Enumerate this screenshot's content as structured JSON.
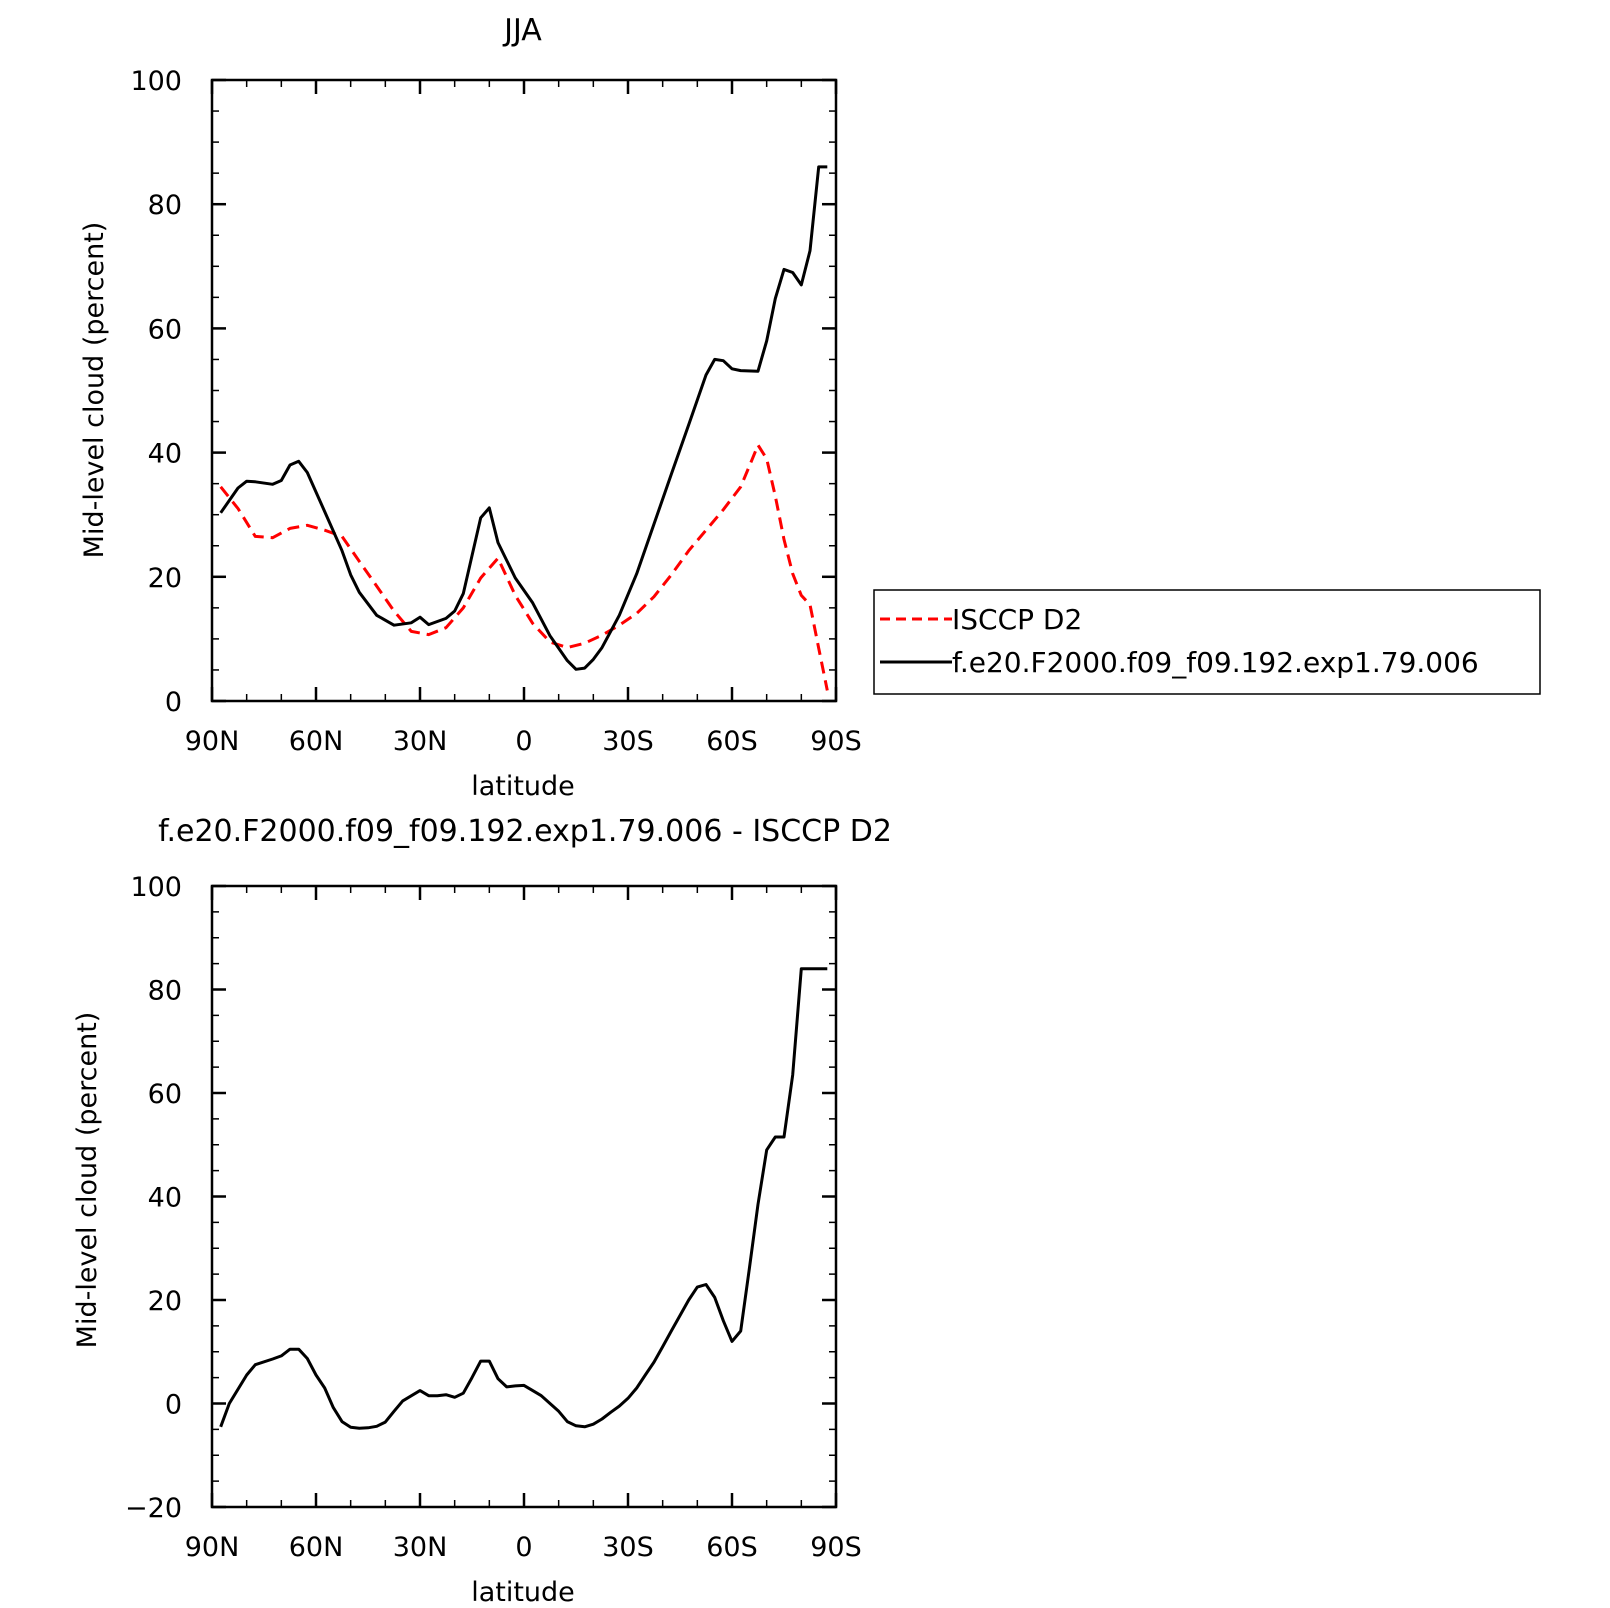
{
  "chart_data": [
    {
      "type": "line",
      "title": "JJA",
      "xlabel": "latitude",
      "ylabel": "Mid-level cloud (percent)",
      "xlim": [
        90,
        -90
      ],
      "ylim": [
        0,
        100
      ],
      "x_ticks": [
        90,
        60,
        30,
        0,
        -30,
        -60,
        -90
      ],
      "x_tick_labels": [
        "90N",
        "60N",
        "30N",
        "0",
        "30S",
        "60S",
        "90S"
      ],
      "y_ticks": [
        0,
        20,
        40,
        60,
        80,
        100
      ],
      "y_tick_labels": [
        "0",
        "20",
        "40",
        "60",
        "80",
        "100"
      ],
      "legend": {
        "placement": "outside-right"
      },
      "series": [
        {
          "name": "ISCCP D2",
          "color": "#ff0000",
          "dashed": true,
          "x": [
            87.5,
            82.5,
            77.5,
            72.5,
            67.5,
            62.5,
            57.5,
            52.5,
            47.5,
            42.5,
            37.5,
            32.5,
            27.5,
            22.5,
            17.5,
            12.5,
            7.5,
            2.5,
            -2.5,
            -7.5,
            -12.5,
            -17.5,
            -22.5,
            -27.5,
            -32.5,
            -37.5,
            -42.5,
            -47.5,
            -52.5,
            -57.5,
            -62.5,
            -65.5,
            -67.5,
            -70,
            -72.5,
            -75,
            -77.5,
            -80,
            -82.5,
            -85,
            -87.5
          ],
          "values": [
            34.5,
            31,
            26.5,
            26.3,
            27.8,
            28.3,
            27.5,
            26.5,
            22.5,
            18.5,
            14.5,
            11.2,
            10.7,
            11.8,
            15,
            19.8,
            23,
            17,
            12.5,
            9.5,
            8.6,
            9.3,
            10.6,
            12.2,
            14.1,
            16.8,
            20.3,
            24.2,
            27.5,
            30.8,
            34.5,
            38.5,
            41.2,
            39,
            33,
            26,
            20.5,
            17,
            15.5,
            8.5,
            1.7
          ]
        },
        {
          "name": "f.e20.F2000.f09_f09.192.exp1.79.006",
          "color": "#000000",
          "dashed": false,
          "x": [
            87.5,
            82.5,
            80,
            77.5,
            72.5,
            70,
            67.5,
            65,
            62.5,
            57.5,
            52.5,
            50,
            47.5,
            42.5,
            37.5,
            32.5,
            30,
            27.5,
            22.5,
            20,
            17.5,
            12.5,
            10,
            7.5,
            2.5,
            -2.5,
            -7.5,
            -12.5,
            -15,
            -17.5,
            -20,
            -22.5,
            -27.5,
            -32.5,
            -37.5,
            -42.5,
            -47.5,
            -52.5,
            -55,
            -57.5,
            -60,
            -62.5,
            -67.5,
            -70,
            -72.5,
            -75,
            -77.5,
            -80,
            -82.5,
            -85,
            -87.5
          ],
          "values": [
            30.3,
            34.3,
            35.4,
            35.3,
            34.9,
            35.5,
            38,
            38.6,
            36.8,
            30.5,
            24.2,
            20.3,
            17.5,
            13.8,
            12.2,
            12.6,
            13.5,
            12.3,
            13.3,
            14.5,
            17.3,
            29.5,
            31.1,
            25.5,
            19.8,
            15.8,
            10.5,
            6.5,
            5.1,
            5.3,
            6.7,
            8.6,
            13.8,
            20.5,
            28.5,
            36.5,
            44.5,
            52.5,
            55,
            54.8,
            53.5,
            53.2,
            53.1,
            58,
            64.8,
            69.5,
            69,
            67,
            72.5,
            86,
            86
          ]
        }
      ]
    },
    {
      "type": "line",
      "title": "f.e20.F2000.f09_f09.192.exp1.79.006 - ISCCP D2",
      "xlabel": "latitude",
      "ylabel": "Mid-level cloud (percent)",
      "xlim": [
        90,
        -90
      ],
      "ylim": [
        -20,
        100
      ],
      "x_ticks": [
        90,
        60,
        30,
        0,
        -30,
        -60,
        -90
      ],
      "x_tick_labels": [
        "90N",
        "60N",
        "30N",
        "0",
        "30S",
        "60S",
        "90S"
      ],
      "y_ticks": [
        -20,
        0,
        20,
        40,
        60,
        80,
        100
      ],
      "y_tick_labels": [
        "−20",
        "0",
        "20",
        "40",
        "60",
        "80",
        "100"
      ],
      "series": [
        {
          "color": "#000000",
          "dashed": false,
          "x": [
            87.5,
            85,
            80,
            77.5,
            72.5,
            70,
            67.5,
            65,
            62.5,
            60,
            57.5,
            55,
            52.5,
            50,
            47.5,
            45,
            42.5,
            40,
            37.5,
            35,
            30,
            27.5,
            25,
            22.5,
            20,
            17.5,
            15,
            12.5,
            10,
            7.5,
            5,
            2.5,
            0,
            -2.5,
            -5,
            -7.5,
            -10,
            -12.5,
            -15,
            -17.5,
            -20,
            -22.5,
            -25,
            -27.5,
            -30,
            -32.5,
            -35,
            -37.5,
            -40,
            -42.5,
            -45,
            -47.5,
            -50,
            -52.5,
            -55,
            -57.5,
            -60,
            -62.5,
            -65,
            -67.5,
            -70,
            -72.5,
            -75,
            -77.5,
            -80,
            -82.5,
            -85,
            -87.5
          ],
          "values": [
            -4.5,
            0,
            5.5,
            7.5,
            8.6,
            9.2,
            10.5,
            10.5,
            8.7,
            5.5,
            3,
            -0.8,
            -3.5,
            -4.6,
            -4.8,
            -4.7,
            -4.4,
            -3.6,
            -1.5,
            0.5,
            2.5,
            1.5,
            1.5,
            1.7,
            1.2,
            2,
            5,
            8.2,
            8.2,
            4.8,
            3.2,
            3.4,
            3.5,
            2.5,
            1.5,
            0,
            -1.5,
            -3.5,
            -4.3,
            -4.5,
            -4,
            -3,
            -1.7,
            -0.5,
            1,
            3,
            5.5,
            8,
            11,
            14,
            17,
            20,
            22.5,
            23,
            20.5,
            16,
            12,
            14,
            26,
            38.5,
            49,
            51.5,
            51.5,
            63.5,
            84,
            84,
            84,
            84
          ]
        }
      ]
    }
  ]
}
